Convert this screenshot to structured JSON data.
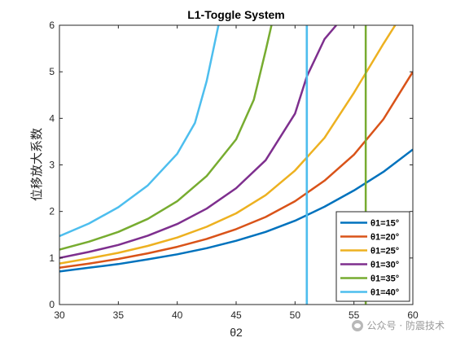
{
  "chart_data": {
    "type": "line",
    "title": "L1-Toggle System",
    "xlabel": "θ2",
    "ylabel": "位移放大系数",
    "xlim": [
      30,
      60
    ],
    "ylim": [
      0,
      6
    ],
    "xticks": [
      "30",
      "35",
      "40",
      "45",
      "50",
      "55",
      "60"
    ],
    "yticks": [
      "0",
      "1",
      "2",
      "3",
      "4",
      "5",
      "6"
    ],
    "grid": false,
    "legend_position": "bottom-right",
    "series": [
      {
        "name": "θ1=15°",
        "color": "#0072BD",
        "x": [
          30,
          32.5,
          35,
          37.5,
          40,
          42.5,
          45,
          47.5,
          50,
          52.5,
          55,
          57.5,
          60
        ],
        "y": [
          0.71,
          0.79,
          0.87,
          0.97,
          1.08,
          1.21,
          1.37,
          1.56,
          1.8,
          2.1,
          2.45,
          2.85,
          3.33
        ],
        "vline": 51
      },
      {
        "name": "θ1=20°",
        "color": "#D95319",
        "x": [
          30,
          32.5,
          35,
          37.5,
          40,
          42.5,
          45,
          47.5,
          50,
          52.5,
          55,
          57.5,
          60
        ],
        "y": [
          0.79,
          0.88,
          0.98,
          1.1,
          1.24,
          1.41,
          1.62,
          1.88,
          2.22,
          2.66,
          3.22,
          3.98,
          5.0
        ],
        "vline": null
      },
      {
        "name": "θ1=25°",
        "color": "#EDB120",
        "x": [
          30,
          32.5,
          35,
          37.5,
          40,
          42.5,
          45,
          47.5,
          50,
          52.5,
          55,
          57.5,
          58.5
        ],
        "y": [
          0.88,
          0.99,
          1.11,
          1.26,
          1.44,
          1.67,
          1.96,
          2.35,
          2.88,
          3.58,
          4.55,
          5.6,
          6.0
        ],
        "vline": null
      },
      {
        "name": "θ1=30°",
        "color": "#7E2F8E",
        "x": [
          30,
          32.5,
          35,
          37.5,
          40,
          42.5,
          45,
          47.5,
          50,
          51,
          52.5,
          53.5
        ],
        "y": [
          1.0,
          1.13,
          1.28,
          1.48,
          1.73,
          2.06,
          2.5,
          3.1,
          4.1,
          4.9,
          5.7,
          6.0
        ],
        "vline": null
      },
      {
        "name": "θ1=35°",
        "color": "#77AC30",
        "x": [
          30,
          32.5,
          35,
          37.5,
          40,
          42.5,
          45,
          46.5,
          47.5,
          48
        ],
        "y": [
          1.18,
          1.35,
          1.56,
          1.84,
          2.22,
          2.76,
          3.55,
          4.4,
          5.45,
          6.0
        ],
        "vline": 56
      },
      {
        "name": "θ1=40°",
        "color": "#4DBEEE",
        "x": [
          30,
          32.5,
          35,
          37.5,
          40,
          41.5,
          42.5,
          43.5
        ],
        "y": [
          1.47,
          1.74,
          2.09,
          2.56,
          3.24,
          3.9,
          4.8,
          6.0
        ],
        "vline": 51
      }
    ]
  },
  "watermark": {
    "text": "公众号 · 防震技术"
  }
}
